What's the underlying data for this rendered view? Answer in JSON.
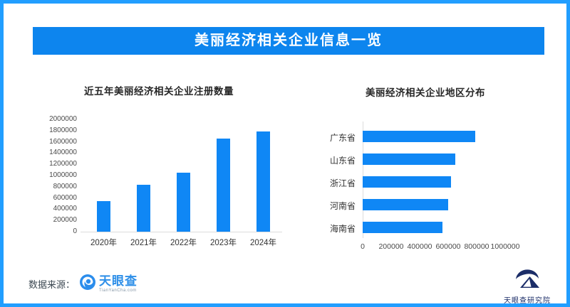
{
  "page": {
    "border_color": "#219eff",
    "background": "#ffffff"
  },
  "header": {
    "title": "美丽经济相关企业信息一览",
    "bg_color": "#0d85ee",
    "text_color": "#ffffff"
  },
  "chart_data": [
    {
      "type": "bar",
      "orientation": "vertical",
      "title": "近五年美丽经济相关企业注册数量",
      "categories": [
        "2020年",
        "2021年",
        "2022年",
        "2023年",
        "2024年"
      ],
      "values": [
        540000,
        840000,
        1050000,
        1660000,
        1790000
      ],
      "ylim": [
        0,
        2000000
      ],
      "yticks": [
        0,
        200000,
        400000,
        600000,
        800000,
        1000000,
        1200000,
        1400000,
        1600000,
        1800000,
        2000000
      ],
      "bar_color": "#0f87f5",
      "grid": false,
      "legend": null
    },
    {
      "type": "bar",
      "orientation": "horizontal",
      "title": "美丽经济相关企业地区分布",
      "categories": [
        "广东省",
        "山东省",
        "浙江省",
        "河南省",
        "海南省"
      ],
      "values": [
        790000,
        650000,
        620000,
        600000,
        560000
      ],
      "xlim": [
        0,
        1000000
      ],
      "xticks": [
        0,
        200000,
        400000,
        600000,
        800000,
        1000000
      ],
      "bar_color": "#0f87f5",
      "grid": false,
      "legend": null
    }
  ],
  "footer": {
    "source_label": "数据来源：",
    "tianyancha_name": "天眼查",
    "tianyancha_sub": "TianYanCha.com"
  },
  "branding": {
    "research_institute": "天眼查研究院"
  },
  "icons": {
    "tianyancha_eye": "blue circle with white eye swoosh",
    "research_logo": "navy swoosh over mountain triangle"
  }
}
